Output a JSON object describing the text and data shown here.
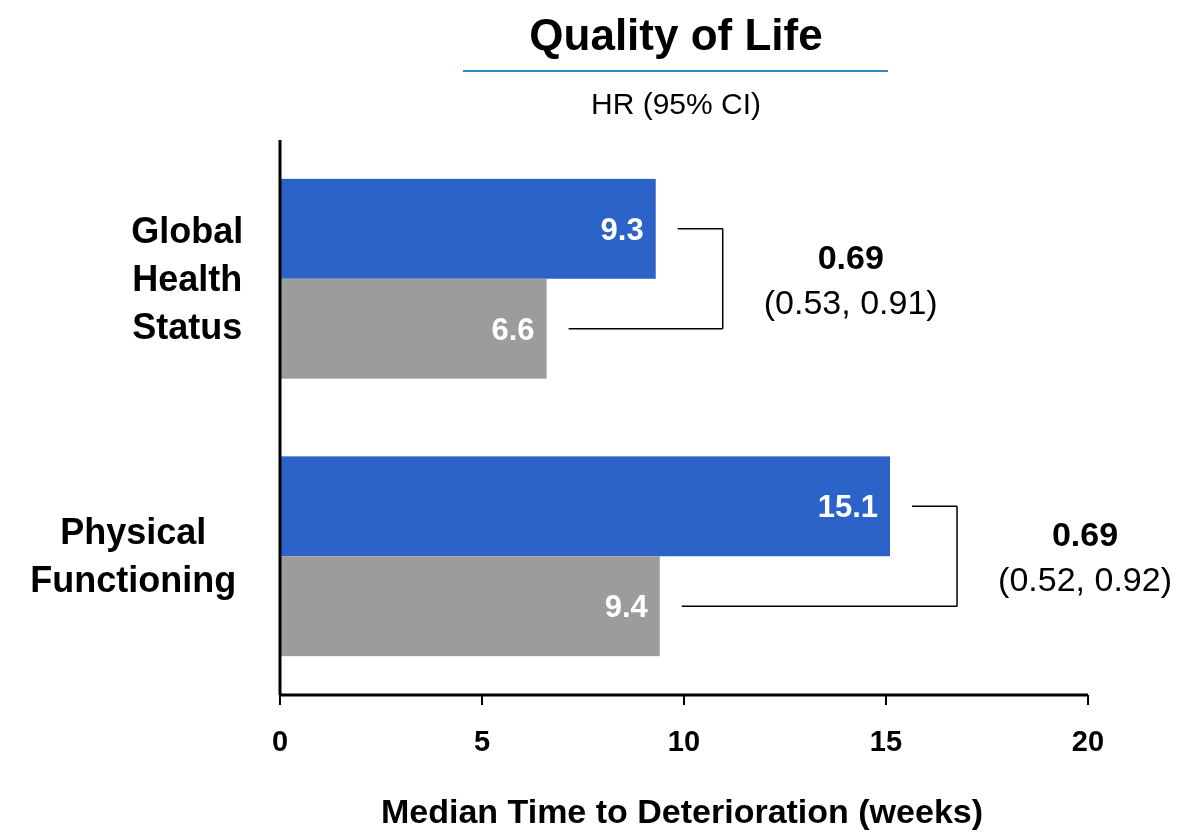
{
  "chart_data": {
    "type": "bar",
    "orientation": "horizontal",
    "title": "Quality of Life",
    "subtitle": "HR (95% CI)",
    "xlabel": "Median Time to Deterioration (weeks)",
    "categories": [
      "Global\nHealth\nStatus",
      "Physical\nFunctioning"
    ],
    "series": [
      {
        "color": "#2c63c8",
        "values": [
          9.3,
          15.1
        ]
      },
      {
        "color": "#9c9c9c",
        "values": [
          6.6,
          9.4
        ]
      }
    ],
    "xlim": [
      0,
      20
    ],
    "xticks": [
      0,
      5,
      10,
      15,
      20
    ],
    "data_labels": true,
    "grid": false,
    "annotations": [
      "0.69",
      "(0.53, 0.91)",
      "0.69",
      "(0.52, 0.92)"
    ]
  }
}
